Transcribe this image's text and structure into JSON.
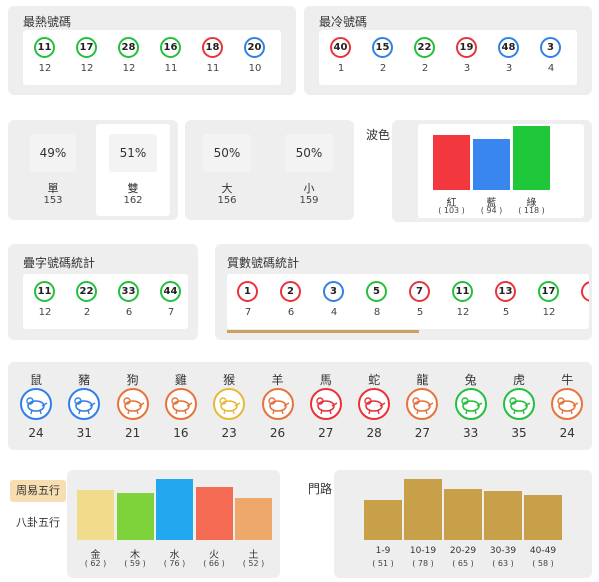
{
  "hot": {
    "title": "最熱號碼",
    "balls": [
      {
        "num": "11",
        "count": "12",
        "color": "green"
      },
      {
        "num": "17",
        "count": "12",
        "color": "green"
      },
      {
        "num": "28",
        "count": "12",
        "color": "green"
      },
      {
        "num": "16",
        "count": "11",
        "color": "green"
      },
      {
        "num": "18",
        "count": "11",
        "color": "red"
      },
      {
        "num": "20",
        "count": "10",
        "color": "blue"
      }
    ]
  },
  "cold": {
    "title": "最冷號碼",
    "balls": [
      {
        "num": "40",
        "count": "1",
        "color": "red"
      },
      {
        "num": "15",
        "count": "2",
        "color": "blue"
      },
      {
        "num": "22",
        "count": "2",
        "color": "green"
      },
      {
        "num": "19",
        "count": "3",
        "color": "red"
      },
      {
        "num": "48",
        "count": "3",
        "color": "blue"
      },
      {
        "num": "3",
        "count": "4",
        "color": "blue"
      }
    ]
  },
  "oddeven": {
    "odd": {
      "pct": "49%",
      "label": "單",
      "count": "153"
    },
    "even": {
      "pct": "51%",
      "label": "雙",
      "count": "162"
    }
  },
  "bigsmall": {
    "big": {
      "pct": "50%",
      "label": "大",
      "count": "156"
    },
    "small": {
      "pct": "50%",
      "label": "小",
      "count": "159"
    }
  },
  "wave": {
    "title": "波色",
    "bars": [
      {
        "label": "紅",
        "count": "( 103 )",
        "value": 103,
        "color": "#f2383e"
      },
      {
        "label": "藍",
        "count": "( 94 )",
        "value": 94,
        "color": "#3a86f0"
      },
      {
        "label": "綠",
        "count": "( 118 )",
        "value": 118,
        "color": "#1ec838"
      }
    ]
  },
  "repeat": {
    "title": "疊字號碼統計",
    "balls": [
      {
        "num": "11",
        "count": "12",
        "color": "green"
      },
      {
        "num": "22",
        "count": "2",
        "color": "green"
      },
      {
        "num": "33",
        "count": "6",
        "color": "green"
      },
      {
        "num": "44",
        "count": "7",
        "color": "green"
      }
    ]
  },
  "prime": {
    "title": "質數號碼統計",
    "balls": [
      {
        "num": "1",
        "count": "7",
        "color": "red"
      },
      {
        "num": "2",
        "count": "6",
        "color": "red"
      },
      {
        "num": "3",
        "count": "4",
        "color": "blue"
      },
      {
        "num": "5",
        "count": "8",
        "color": "green"
      },
      {
        "num": "7",
        "count": "5",
        "color": "red"
      },
      {
        "num": "11",
        "count": "12",
        "color": "green"
      },
      {
        "num": "13",
        "count": "5",
        "color": "red"
      },
      {
        "num": "17",
        "count": "12",
        "color": "green"
      },
      {
        "num": "",
        "count": "",
        "color": "red"
      }
    ],
    "scroll_progress": 0.53
  },
  "zodiac": [
    {
      "name": "鼠",
      "count": "24",
      "icon": "rat-icon",
      "color": "#2f80e8"
    },
    {
      "name": "豬",
      "count": "31",
      "icon": "pig-icon",
      "color": "#2f80e8"
    },
    {
      "name": "狗",
      "count": "21",
      "icon": "dog-icon",
      "color": "#e8733a"
    },
    {
      "name": "雞",
      "count": "16",
      "icon": "rooster-icon",
      "color": "#e8733a"
    },
    {
      "name": "猴",
      "count": "23",
      "icon": "monkey-icon",
      "color": "#e8b83a"
    },
    {
      "name": "羊",
      "count": "26",
      "icon": "goat-icon",
      "color": "#e8733a"
    },
    {
      "name": "馬",
      "count": "27",
      "icon": "horse-icon",
      "color": "#e8333a"
    },
    {
      "name": "蛇",
      "count": "28",
      "icon": "snake-icon",
      "color": "#e8333a"
    },
    {
      "name": "龍",
      "count": "27",
      "icon": "dragon-icon",
      "color": "#e8733a"
    },
    {
      "name": "兔",
      "count": "33",
      "icon": "rabbit-icon",
      "color": "#22c03c"
    },
    {
      "name": "虎",
      "count": "35",
      "icon": "tiger-icon",
      "color": "#22c03c"
    },
    {
      "name": "牛",
      "count": "24",
      "icon": "ox-icon",
      "color": "#e8733a"
    }
  ],
  "elements": {
    "tab_active": "周易五行",
    "tab_inactive": "八卦五行",
    "bars": [
      {
        "label": "金",
        "count": "( 62 )",
        "value": 62,
        "color": "#f0dc8a"
      },
      {
        "label": "木",
        "count": "( 59 )",
        "value": 59,
        "color": "#7ed23a"
      },
      {
        "label": "水",
        "count": "( 76 )",
        "value": 76,
        "color": "#22a8ee"
      },
      {
        "label": "火",
        "count": "( 66 )",
        "value": 66,
        "color": "#f56a52"
      },
      {
        "label": "土",
        "count": "( 52 )",
        "value": 52,
        "color": "#eda86a"
      }
    ]
  },
  "paths": {
    "title": "門路",
    "bars": [
      {
        "label": "1-9",
        "count": "( 51 )",
        "value": 51
      },
      {
        "label": "10-19",
        "count": "( 78 )",
        "value": 78
      },
      {
        "label": "20-29",
        "count": "( 65 )",
        "value": 65
      },
      {
        "label": "30-39",
        "count": "( 63 )",
        "value": 63
      },
      {
        "label": "40-49",
        "count": "( 58 )",
        "value": 58
      }
    ],
    "color": "#c8a04a"
  }
}
